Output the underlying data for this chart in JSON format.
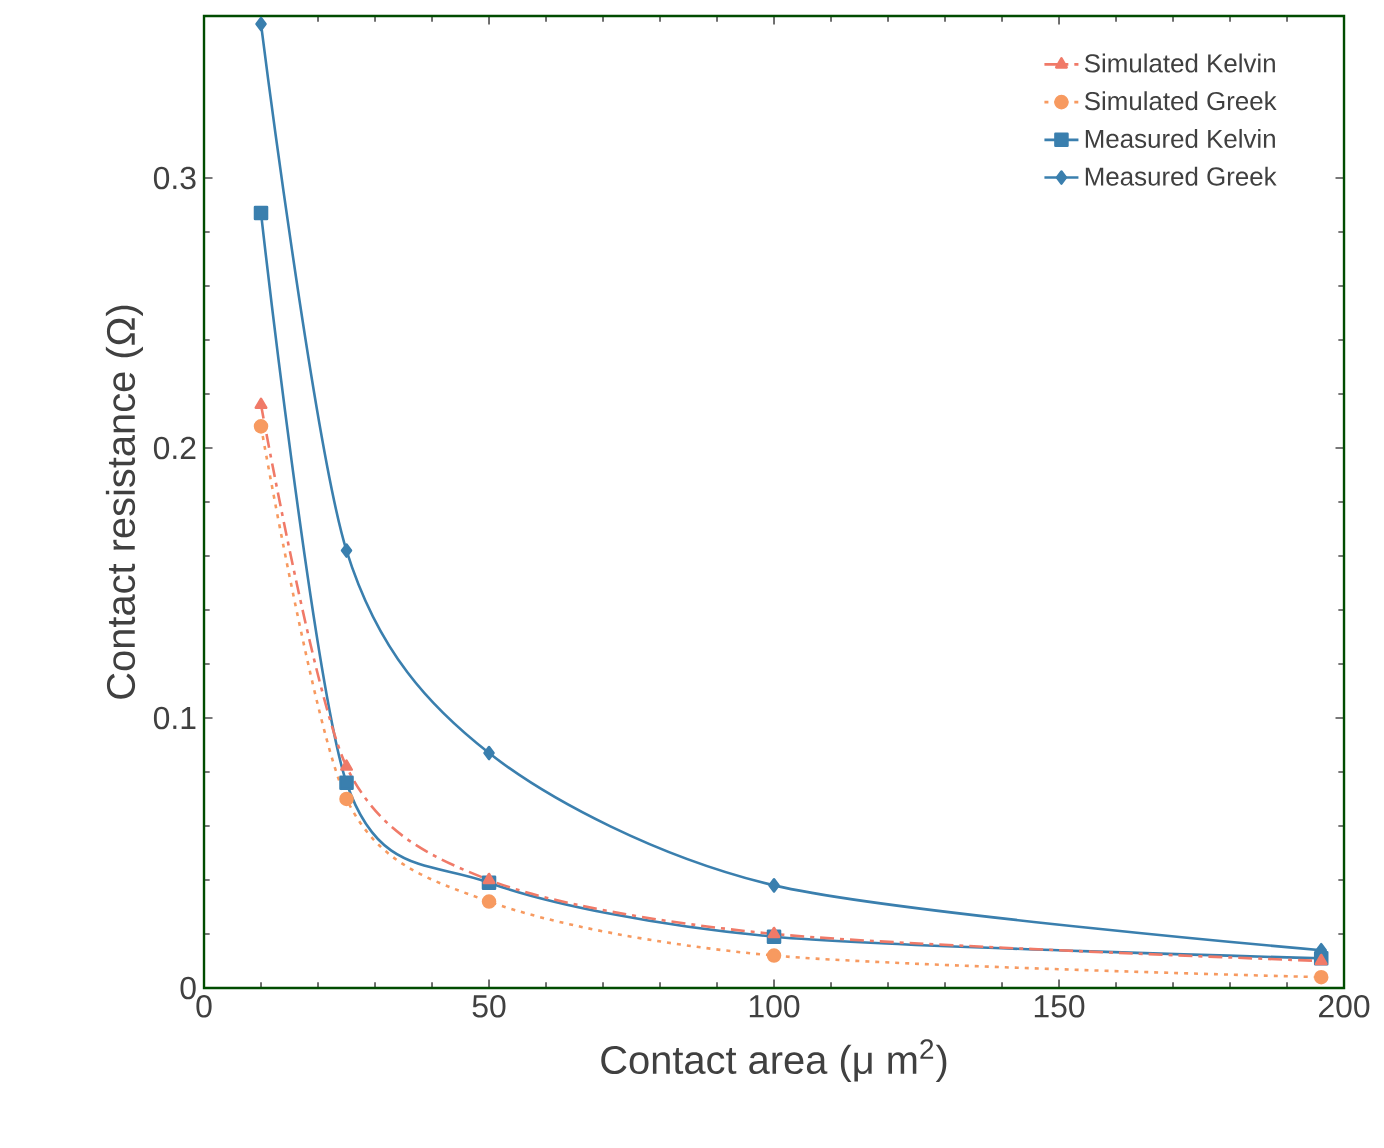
{
  "chart_data": {
    "type": "line",
    "xlabel": "Contact area  (μ m$^{2}$)",
    "ylabel": "Contact resistance (Ω)",
    "xlim": [
      0,
      200
    ],
    "ylim": [
      0,
      0.36
    ],
    "xticks": [
      0,
      50,
      100,
      150,
      200
    ],
    "yticks": [
      0,
      0.1,
      0.2,
      0.3
    ],
    "legend": "top right",
    "grid": false,
    "series": [
      {
        "name": "Simulated Kelvin",
        "color": "#f07a68",
        "marker": "triangle",
        "line_style": "dashed",
        "x": [
          10,
          25,
          50,
          100,
          196
        ],
        "values": [
          0.216,
          0.082,
          0.04,
          0.02,
          0.01
        ]
      },
      {
        "name": "Simulated Greek",
        "color": "#f79a60",
        "marker": "circle",
        "line_style": "dotted",
        "x": [
          10,
          25,
          50,
          100,
          196
        ],
        "values": [
          0.208,
          0.07,
          0.032,
          0.012,
          0.004
        ]
      },
      {
        "name": "Measured Kelvin",
        "color": "#3a7fae",
        "marker": "square",
        "line_style": "solid",
        "x": [
          10,
          25,
          50,
          100,
          196
        ],
        "values": [
          0.287,
          0.076,
          0.039,
          0.019,
          0.011
        ]
      },
      {
        "name": "Measured Greek",
        "color": "#3a7fae",
        "marker": "diamond",
        "line_style": "solid",
        "x": [
          10,
          25,
          50,
          100,
          196
        ],
        "values": [
          0.357,
          0.162,
          0.087,
          0.038,
          0.014
        ]
      }
    ]
  }
}
